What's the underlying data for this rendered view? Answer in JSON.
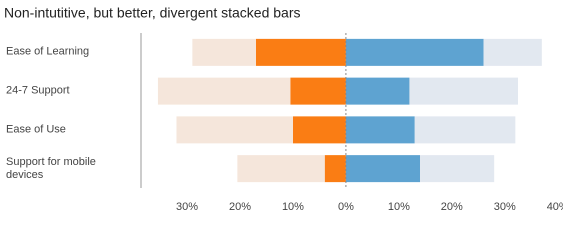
{
  "chart_data": {
    "type": "diverging-stacked-bar",
    "title": "Non-intutitive, but better, divergent stacked bars",
    "categories": [
      "Ease of Learning",
      "24-7 Support",
      "Ease of Use",
      "Support for mobile devices"
    ],
    "series": [
      {
        "color": "#fa7d14",
        "values": [
          -17,
          -10.5,
          -10,
          -4
        ]
      },
      {
        "color": "#f5e6db",
        "values": [
          -12,
          -25,
          -22,
          -16.5
        ]
      },
      {
        "color": "#5ea3d1",
        "values": [
          26,
          12,
          13,
          14
        ]
      },
      {
        "color": "#e2e8f0",
        "values": [
          11,
          20.5,
          19,
          14
        ]
      }
    ],
    "xlim": [
      -38.7,
      41
    ],
    "xticks": [
      {
        "value": -30,
        "label": "30%"
      },
      {
        "value": -20,
        "label": "20%"
      },
      {
        "value": -10,
        "label": "10%"
      },
      {
        "value": 0,
        "label": "0%"
      },
      {
        "value": 10,
        "label": "10%"
      },
      {
        "value": 20,
        "label": "20%"
      },
      {
        "value": 30,
        "label": "30%"
      },
      {
        "value": 40,
        "label": "40%"
      }
    ]
  }
}
